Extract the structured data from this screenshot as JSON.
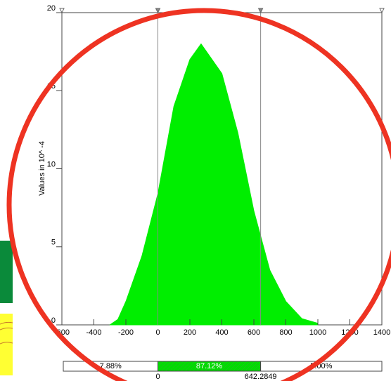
{
  "chart_data": {
    "type": "area",
    "ylabel": "Values in 10^ -4",
    "x": [
      -300,
      -250,
      -200,
      -100,
      0,
      100,
      200,
      270,
      400,
      500,
      600,
      700,
      800,
      900,
      1000
    ],
    "values": [
      0,
      0.35,
      1.5,
      4.4,
      8.4,
      14,
      17,
      18,
      16.1,
      12.3,
      7.3,
      3.5,
      1.5,
      0.4,
      0.1
    ],
    "color": "#00ee00",
    "xlim": [
      -600,
      1400
    ],
    "ylim": [
      0,
      20
    ],
    "xticks": [
      -600,
      -400,
      -200,
      0,
      200,
      400,
      600,
      800,
      1000,
      1200,
      1400
    ],
    "yticks": [
      0,
      5,
      10,
      15,
      20
    ],
    "delimiters": [
      0,
      642.2849
    ],
    "probabilities": {
      "values": [
        7.88,
        87.12,
        5
      ],
      "value_labels": [
        "7.88%",
        "87.12%",
        "5.00%"
      ]
    }
  }
}
